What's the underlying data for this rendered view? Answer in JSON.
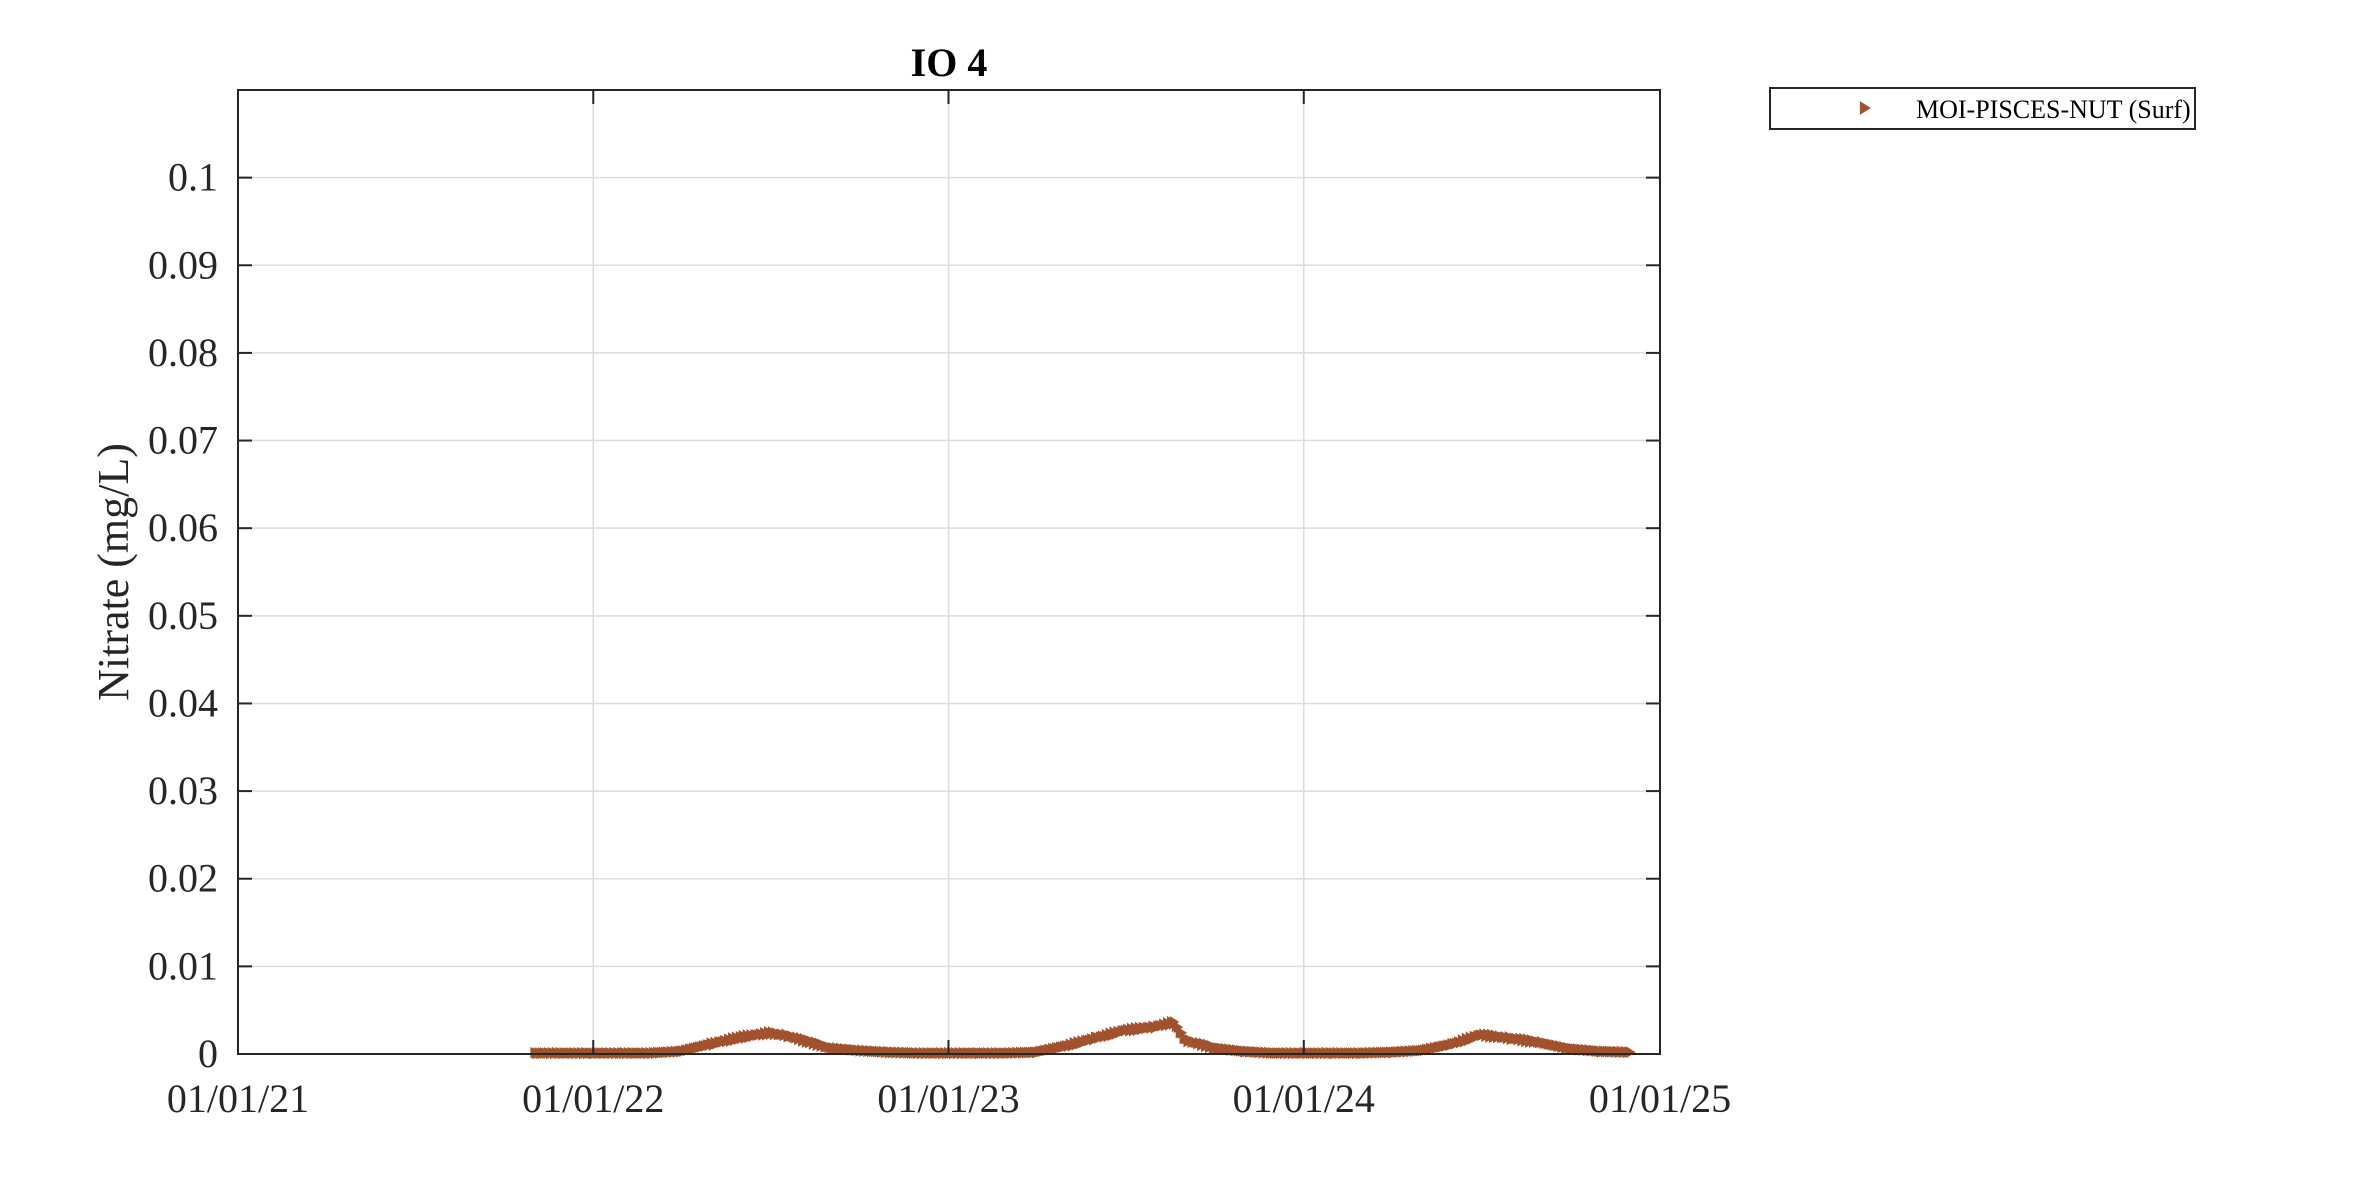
{
  "chart_data": {
    "type": "scatter",
    "title": "IO 4",
    "xlabel": "",
    "ylabel": "Nitrate (mg/L)",
    "xlim": [
      "2021-01-01",
      "2025-01-01"
    ],
    "ylim": [
      0,
      0.11
    ],
    "x_ticks": [
      "2021-01-01",
      "2022-01-01",
      "2023-01-01",
      "2024-01-01",
      "2025-01-01"
    ],
    "x_tick_labels": [
      "01/01/21",
      "01/01/22",
      "01/01/23",
      "01/01/24",
      "01/01/25"
    ],
    "y_ticks": [
      0,
      0.01,
      0.02,
      0.03,
      0.04,
      0.05,
      0.06,
      0.07,
      0.08,
      0.09,
      0.1
    ],
    "y_tick_labels": [
      "0",
      "0.01",
      "0.02",
      "0.03",
      "0.04",
      "0.05",
      "0.06",
      "0.07",
      "0.08",
      "0.09",
      "0.1"
    ],
    "grid": true,
    "legend_position": "outside-top-right",
    "series": [
      {
        "name": "MOI-PISCES-NUT (Surf)",
        "color": "#A0522D",
        "marker": "triangle-right",
        "points": [
          [
            "2021-11-01",
            0.0001
          ],
          [
            "2021-12-01",
            0.0001
          ],
          [
            "2022-01-01",
            0.0001
          ],
          [
            "2022-02-01",
            0.0001
          ],
          [
            "2022-03-01",
            0.0001
          ],
          [
            "2022-04-01",
            0.0003
          ],
          [
            "2022-05-01",
            0.0011
          ],
          [
            "2022-06-01",
            0.0019
          ],
          [
            "2022-07-01",
            0.0024
          ],
          [
            "2022-07-20",
            0.0021
          ],
          [
            "2022-08-10",
            0.0014
          ],
          [
            "2022-09-01",
            0.0007
          ],
          [
            "2022-10-01",
            0.0004
          ],
          [
            "2022-11-01",
            0.0002
          ],
          [
            "2022-12-01",
            0.0001
          ],
          [
            "2023-01-01",
            0.0001
          ],
          [
            "2023-02-01",
            0.0001
          ],
          [
            "2023-03-01",
            0.0001
          ],
          [
            "2023-04-01",
            0.0002
          ],
          [
            "2023-05-01",
            0.0009
          ],
          [
            "2023-06-01",
            0.0018
          ],
          [
            "2023-07-01",
            0.0027
          ],
          [
            "2023-08-01",
            0.0031
          ],
          [
            "2023-08-20",
            0.0036
          ],
          [
            "2023-09-01",
            0.0016
          ],
          [
            "2023-10-01",
            0.0007
          ],
          [
            "2023-11-01",
            0.0003
          ],
          [
            "2023-12-01",
            0.0001
          ],
          [
            "2024-01-01",
            0.0001
          ],
          [
            "2024-02-01",
            0.0001
          ],
          [
            "2024-03-01",
            0.0001
          ],
          [
            "2024-04-01",
            0.0002
          ],
          [
            "2024-05-01",
            0.0004
          ],
          [
            "2024-06-01",
            0.0011
          ],
          [
            "2024-07-01",
            0.0022
          ],
          [
            "2024-08-01",
            0.0018
          ],
          [
            "2024-09-01",
            0.0013
          ],
          [
            "2024-10-01",
            0.0006
          ],
          [
            "2024-11-01",
            0.0003
          ],
          [
            "2024-12-01",
            0.0002
          ]
        ]
      }
    ]
  }
}
